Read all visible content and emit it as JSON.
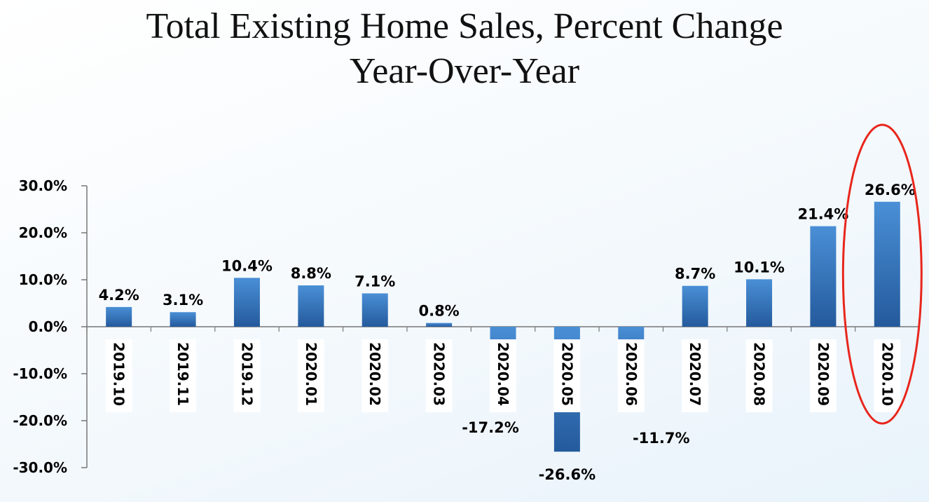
{
  "chart_data": {
    "type": "bar",
    "title_lines": [
      "Total Existing Home Sales, Percent Change",
      "Year-Over-Year"
    ],
    "categories": [
      "2019.10",
      "2019.11",
      "2019.12",
      "2020.01",
      "2020.02",
      "2020.03",
      "2020.04",
      "2020.05",
      "2020.06",
      "2020.07",
      "2020.08",
      "2020.09",
      "2020.10"
    ],
    "values": [
      4.2,
      3.1,
      10.4,
      8.8,
      7.1,
      0.8,
      -17.2,
      -26.6,
      -11.7,
      8.7,
      10.1,
      21.4,
      26.6
    ],
    "value_labels": [
      "4.2%",
      "3.1%",
      "10.4%",
      "8.8%",
      "7.1%",
      "0.8%",
      "-17.2%",
      "-26.6%",
      "-11.7%",
      "8.7%",
      "10.1%",
      "21.4%",
      "26.6%"
    ],
    "yticks": [
      "30.0%",
      "20.0%",
      "10.0%",
      "0.0%",
      "-10.0%",
      "-20.0%",
      "-30.0%"
    ],
    "ytick_values": [
      30,
      20,
      10,
      0,
      -10,
      -20,
      -30
    ],
    "ylim": [
      -30,
      30
    ],
    "grid": false,
    "legend": "none",
    "highlight": {
      "category": "2020.10",
      "shape": "ellipse",
      "color": "#e8261c"
    },
    "colors": {
      "bar_top": "#4a8fd6",
      "bar_bottom": "#245a9c",
      "axis": "#777777"
    }
  }
}
